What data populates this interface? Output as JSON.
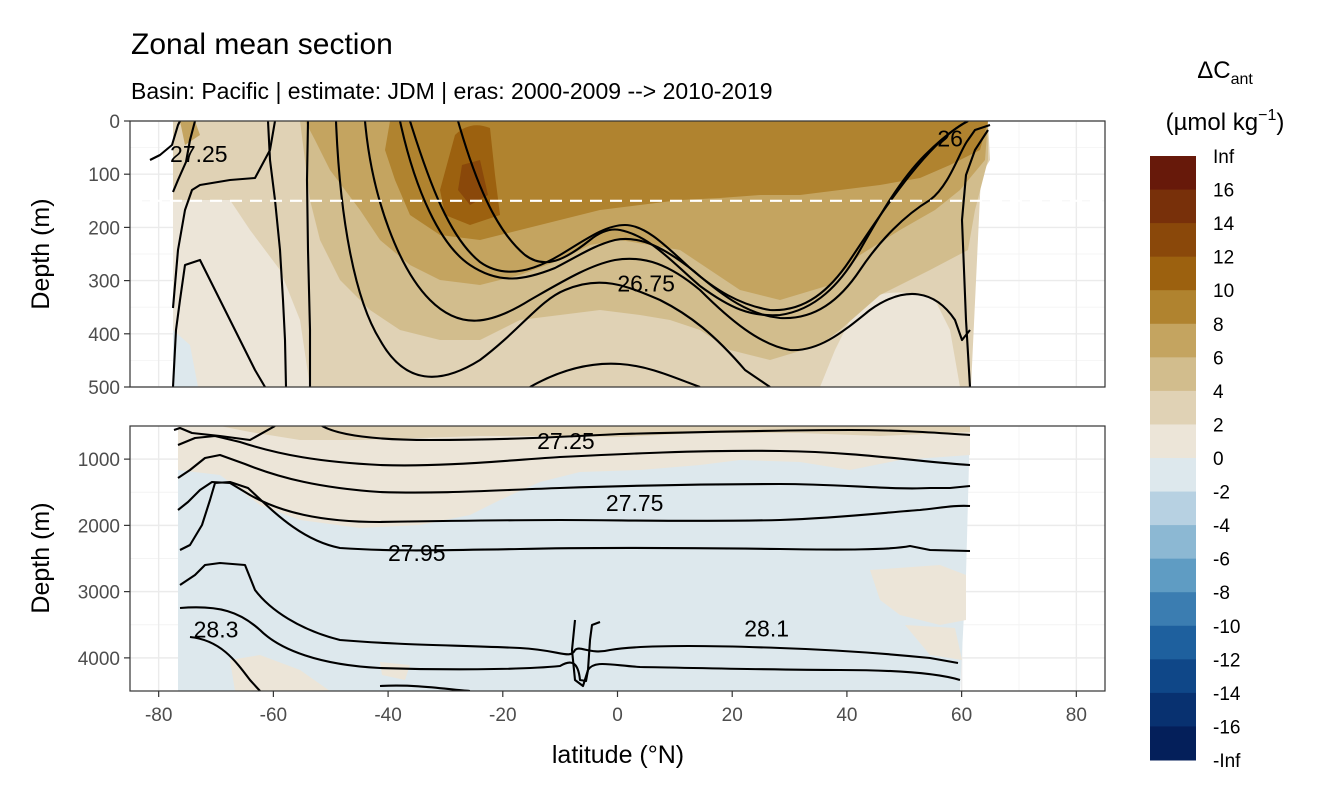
{
  "chart_data": {
    "type": "heatmap",
    "title": "Zonal mean section",
    "subtitle": "Basin: Pacific | estimate: JDM  | eras: 2000-2009 --> 2010-2019",
    "xlabel": "latitude (°N)",
    "ylabel": "Depth (m)",
    "xlim": [
      -85,
      85
    ],
    "x_ticks": [
      -80,
      -60,
      -40,
      -20,
      0,
      20,
      40,
      60,
      80
    ],
    "panels": [
      {
        "name": "upper",
        "ylim": [
          0,
          500
        ],
        "y_reversed": true,
        "y_ticks": [
          0,
          100,
          200,
          300,
          400,
          500
        ],
        "reference_line_depth": 150,
        "contour_labels": [
          {
            "text": "27.25",
            "lat": -73,
            "depth": 62
          },
          {
            "text": "26.75",
            "lat": 5,
            "depth": 305
          },
          {
            "text": "26",
            "lat": 58,
            "depth": 33
          }
        ]
      },
      {
        "name": "lower",
        "ylim": [
          500,
          4500
        ],
        "y_reversed": true,
        "y_ticks": [
          1000,
          2000,
          3000,
          4000
        ],
        "contour_labels": [
          {
            "text": "27.25",
            "lat": -9,
            "depth": 730
          },
          {
            "text": "27.75",
            "lat": 3,
            "depth": 1660
          },
          {
            "text": "27.95",
            "lat": -35,
            "depth": 2420
          },
          {
            "text": "28.3",
            "lat": -70,
            "depth": 3570
          },
          {
            "text": "28.1",
            "lat": 26,
            "depth": 3560
          }
        ]
      }
    ],
    "legend": {
      "title_main": "ΔC",
      "title_sub": "ant",
      "unit": "(µmol kg",
      "unit_sup": "−1",
      "unit_close": ")",
      "placement": "right",
      "labels": [
        "Inf",
        "16",
        "14",
        "12",
        "10",
        "8",
        "6",
        "4",
        "2",
        "0",
        "-2",
        "-4",
        "-6",
        "-8",
        "-10",
        "-12",
        "-14",
        "-16",
        "-Inf"
      ],
      "colors": [
        "#67190a",
        "#78300a",
        "#8a480a",
        "#9c610f",
        "#b0832f",
        "#c4a460",
        "#d2bd8d",
        "#e0d2b5",
        "#ece5d8",
        "#dde8ed",
        "#b7d1e2",
        "#8cb8d3",
        "#5f9cc3",
        "#3b7db1",
        "#1e609e",
        "#0f4788",
        "#083170",
        "#041f5a"
      ]
    }
  }
}
